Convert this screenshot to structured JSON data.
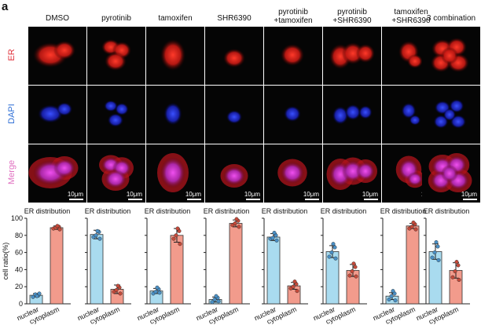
{
  "figure": {
    "panel_letter": "a",
    "columns": [
      "DMSO",
      "pyrotinib",
      "tamoxifen",
      "SHR6390",
      "pyrotinib\n+tamoxifen",
      "pyrotinib\n+SHR6390",
      "tamoxifen\n+SHR6390",
      "3 combination"
    ],
    "rows": [
      {
        "label": "ER",
        "color": "#e0303a"
      },
      {
        "label": "DAPI",
        "color": "#2f6fd6"
      },
      {
        "label": "Merge",
        "color": "#e070c0"
      }
    ],
    "scale_bar": "10μm"
  },
  "chart_data": [
    {
      "type": "bar",
      "title": "ER distribution",
      "categories": [
        "nuclear",
        "cytoplasm"
      ],
      "values": [
        10,
        89
      ],
      "points": [
        [
          8,
          10,
          11,
          9,
          12
        ],
        [
          88,
          90,
          89,
          91,
          87
        ]
      ],
      "errors": [
        2,
        2
      ],
      "ylabel": "cell ratio(%)",
      "ylim": [
        0,
        100
      ],
      "yticks": [
        0,
        20,
        40,
        60,
        80,
        100
      ],
      "colors": [
        "#a9dbef",
        "#f29b8c"
      ]
    },
    {
      "type": "bar",
      "title": "ER distribution",
      "categories": [
        "nuclear",
        "cytoplasm"
      ],
      "values": [
        81,
        17
      ],
      "points": [
        [
          78,
          84,
          80,
          85,
          76
        ],
        [
          14,
          19,
          16,
          21,
          12
        ]
      ],
      "errors": [
        5,
        5
      ],
      "ylim": [
        0,
        100
      ],
      "colors": [
        "#a9dbef",
        "#f29b8c"
      ]
    },
    {
      "type": "bar",
      "title": "ER distribution",
      "categories": [
        "nuclear",
        "cytoplasm"
      ],
      "values": [
        15,
        80
      ],
      "points": [
        [
          12,
          17,
          14,
          19,
          13
        ],
        [
          76,
          85,
          80,
          88,
          70
        ]
      ],
      "errors": [
        3,
        8
      ],
      "ylim": [
        0,
        100
      ],
      "colors": [
        "#a9dbef",
        "#f29b8c"
      ]
    },
    {
      "type": "bar",
      "title": "ER distribution",
      "categories": [
        "nuclear",
        "cytoplasm"
      ],
      "values": [
        5,
        94
      ],
      "points": [
        [
          2,
          7,
          5,
          9,
          3
        ],
        [
          92,
          97,
          94,
          99,
          90
        ]
      ],
      "errors": [
        3,
        4
      ],
      "ylim": [
        0,
        100
      ],
      "colors": [
        "#a9dbef",
        "#f29b8c"
      ]
    },
    {
      "type": "bar",
      "title": "ER distribution",
      "categories": [
        "nuclear",
        "cytoplasm"
      ],
      "values": [
        78,
        21
      ],
      "points": [
        [
          76,
          80,
          77,
          83,
          74
        ],
        [
          18,
          23,
          20,
          26,
          15
        ]
      ],
      "errors": [
        4,
        4
      ],
      "ylim": [
        0,
        100
      ],
      "colors": [
        "#a9dbef",
        "#f29b8c"
      ]
    },
    {
      "type": "bar",
      "title": "ER distribution",
      "categories": [
        "nuclear",
        "cytoplasm"
      ],
      "values": [
        61,
        39
      ],
      "points": [
        [
          55,
          66,
          60,
          70,
          53
        ],
        [
          33,
          43,
          38,
          47,
          32
        ]
      ],
      "errors": [
        7,
        7
      ],
      "ylim": [
        0,
        100
      ],
      "colors": [
        "#a9dbef",
        "#f29b8c"
      ]
    },
    {
      "type": "bar",
      "title": "ER distribution",
      "categories": [
        "nuclear",
        "cytoplasm"
      ],
      "values": [
        9,
        91
      ],
      "points": [
        [
          5,
          12,
          9,
          15,
          4
        ],
        [
          88,
          93,
          90,
          95,
          87
        ]
      ],
      "errors": [
        4,
        3
      ],
      "ylim": [
        0,
        100
      ],
      "colors": [
        "#a9dbef",
        "#f29b8c"
      ]
    },
    {
      "type": "bar",
      "title": "ER distribution",
      "categories": [
        "nuclear",
        "cytoplasm"
      ],
      "values": [
        61,
        39
      ],
      "points": [
        [
          54,
          67,
          60,
          72,
          51
        ],
        [
          31,
          45,
          38,
          49,
          28
        ]
      ],
      "errors": [
        9,
        9
      ],
      "ylim": [
        0,
        100
      ],
      "colors": [
        "#a9dbef",
        "#f29b8c"
      ]
    }
  ]
}
